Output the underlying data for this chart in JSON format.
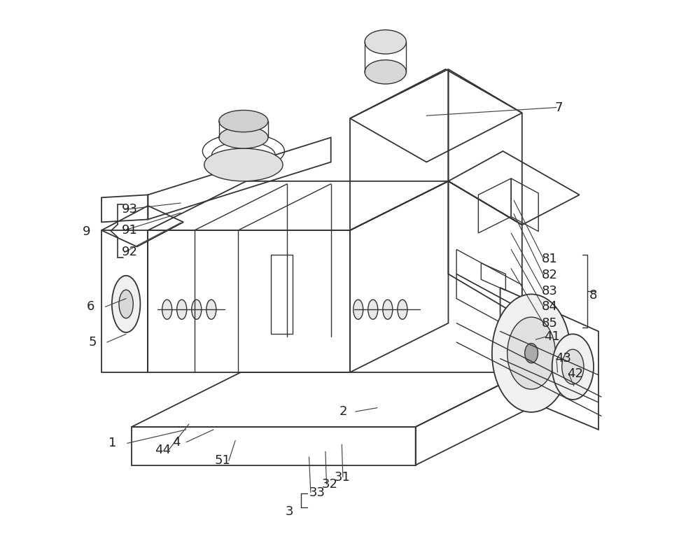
{
  "bg_color": "#ffffff",
  "line_color": "#333333",
  "label_color": "#222222",
  "label_fontsize": 13,
  "fig_width": 10.0,
  "fig_height": 7.83,
  "dpi": 100
}
